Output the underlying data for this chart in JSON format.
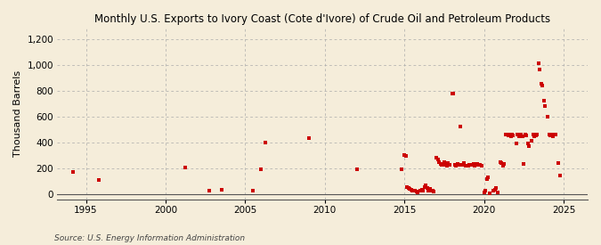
{
  "title": "Monthly U.S. Exports to Ivory Coast (Cote d'Ivore) of Crude Oil and Petroleum Products",
  "ylabel": "Thousand Barrels",
  "source": "Source: U.S. Energy Information Administration",
  "xlim": [
    1993.2,
    2026.5
  ],
  "ylim": [
    -40,
    1280
  ],
  "yticks": [
    0,
    200,
    400,
    600,
    800,
    1000,
    1200
  ],
  "xticks": [
    1995,
    2000,
    2005,
    2010,
    2015,
    2020,
    2025
  ],
  "background_color": "#f5edda",
  "dot_color": "#cc0000",
  "dot_size": 5,
  "data_points": [
    [
      1994.17,
      175
    ],
    [
      1995.83,
      110
    ],
    [
      2001.25,
      205
    ],
    [
      2002.75,
      25
    ],
    [
      2003.5,
      35
    ],
    [
      2005.5,
      25
    ],
    [
      2006.0,
      195
    ],
    [
      2006.25,
      400
    ],
    [
      2009.0,
      430
    ],
    [
      2012.0,
      190
    ],
    [
      2014.83,
      190
    ],
    [
      2015.0,
      300
    ],
    [
      2015.08,
      295
    ],
    [
      2015.17,
      55
    ],
    [
      2015.25,
      50
    ],
    [
      2015.33,
      40
    ],
    [
      2015.42,
      35
    ],
    [
      2015.5,
      30
    ],
    [
      2015.58,
      25
    ],
    [
      2015.67,
      25
    ],
    [
      2015.75,
      20
    ],
    [
      2015.83,
      15
    ],
    [
      2016.0,
      25
    ],
    [
      2016.08,
      35
    ],
    [
      2016.17,
      30
    ],
    [
      2016.25,
      55
    ],
    [
      2016.33,
      70
    ],
    [
      2016.42,
      50
    ],
    [
      2016.5,
      30
    ],
    [
      2016.58,
      40
    ],
    [
      2016.67,
      25
    ],
    [
      2016.75,
      30
    ],
    [
      2016.83,
      20
    ],
    [
      2017.0,
      285
    ],
    [
      2017.08,
      270
    ],
    [
      2017.17,
      250
    ],
    [
      2017.25,
      235
    ],
    [
      2017.33,
      225
    ],
    [
      2017.42,
      230
    ],
    [
      2017.5,
      245
    ],
    [
      2017.58,
      235
    ],
    [
      2017.67,
      220
    ],
    [
      2017.75,
      240
    ],
    [
      2017.83,
      225
    ],
    [
      2018.0,
      775
    ],
    [
      2018.08,
      780
    ],
    [
      2018.17,
      225
    ],
    [
      2018.25,
      220
    ],
    [
      2018.33,
      235
    ],
    [
      2018.42,
      230
    ],
    [
      2018.5,
      520
    ],
    [
      2018.58,
      230
    ],
    [
      2018.67,
      225
    ],
    [
      2018.75,
      240
    ],
    [
      2018.83,
      220
    ],
    [
      2019.0,
      220
    ],
    [
      2019.08,
      230
    ],
    [
      2019.17,
      225
    ],
    [
      2019.25,
      225
    ],
    [
      2019.33,
      235
    ],
    [
      2019.42,
      220
    ],
    [
      2019.5,
      225
    ],
    [
      2019.58,
      235
    ],
    [
      2019.67,
      225
    ],
    [
      2019.75,
      230
    ],
    [
      2019.83,
      220
    ],
    [
      2020.0,
      15
    ],
    [
      2020.08,
      25
    ],
    [
      2020.17,
      115
    ],
    [
      2020.25,
      130
    ],
    [
      2020.33,
      10
    ],
    [
      2020.58,
      25
    ],
    [
      2020.67,
      35
    ],
    [
      2020.75,
      45
    ],
    [
      2020.83,
      15
    ],
    [
      2021.0,
      245
    ],
    [
      2021.08,
      240
    ],
    [
      2021.17,
      220
    ],
    [
      2021.25,
      235
    ],
    [
      2021.33,
      460
    ],
    [
      2021.42,
      460
    ],
    [
      2021.5,
      455
    ],
    [
      2021.58,
      460
    ],
    [
      2021.67,
      450
    ],
    [
      2021.75,
      460
    ],
    [
      2021.83,
      455
    ],
    [
      2022.0,
      395
    ],
    [
      2022.08,
      460
    ],
    [
      2022.17,
      450
    ],
    [
      2022.25,
      455
    ],
    [
      2022.33,
      460
    ],
    [
      2022.42,
      450
    ],
    [
      2022.5,
      235
    ],
    [
      2022.58,
      460
    ],
    [
      2022.67,
      455
    ],
    [
      2022.75,
      395
    ],
    [
      2022.83,
      370
    ],
    [
      2023.0,
      415
    ],
    [
      2023.08,
      460
    ],
    [
      2023.17,
      450
    ],
    [
      2023.25,
      455
    ],
    [
      2023.33,
      460
    ],
    [
      2023.42,
      1010
    ],
    [
      2023.5,
      960
    ],
    [
      2023.58,
      850
    ],
    [
      2023.67,
      840
    ],
    [
      2023.75,
      720
    ],
    [
      2023.83,
      680
    ],
    [
      2024.0,
      600
    ],
    [
      2024.08,
      460
    ],
    [
      2024.17,
      455
    ],
    [
      2024.25,
      460
    ],
    [
      2024.33,
      450
    ],
    [
      2024.5,
      460
    ],
    [
      2024.67,
      240
    ],
    [
      2024.75,
      145
    ]
  ]
}
